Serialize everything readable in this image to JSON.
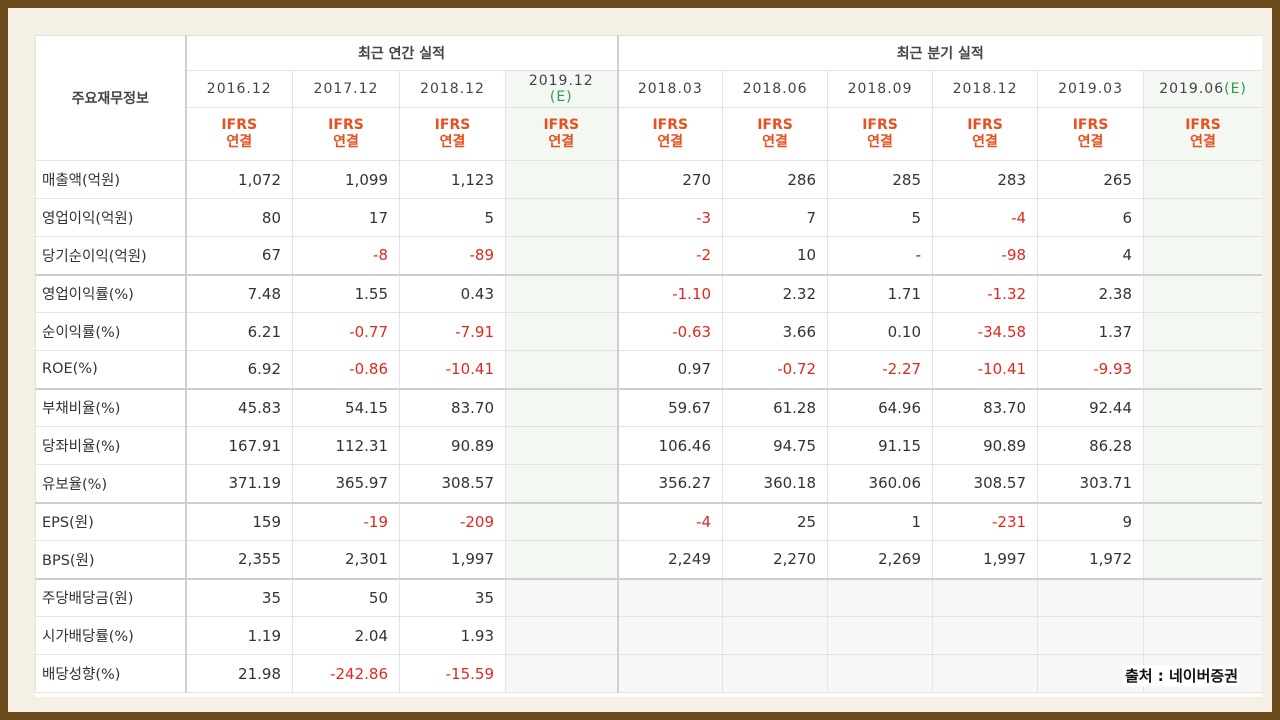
{
  "header": {
    "main_label": "주요재무정보",
    "annual_label": "최근 연간 실적",
    "quarterly_label": "최근 분기 실적",
    "annual_periods": [
      {
        "date": "2016.12",
        "est": ""
      },
      {
        "date": "2017.12",
        "est": ""
      },
      {
        "date": "2018.12",
        "est": ""
      },
      {
        "date": "2019.12",
        "est": "(E)"
      }
    ],
    "quarterly_periods": [
      {
        "date": "2018.03",
        "est": ""
      },
      {
        "date": "2018.06",
        "est": ""
      },
      {
        "date": "2018.09",
        "est": ""
      },
      {
        "date": "2018.12",
        "est": ""
      },
      {
        "date": "2019.03",
        "est": ""
      },
      {
        "date": "2019.06",
        "est": "(E)"
      }
    ],
    "ifrs_line1": "IFRS",
    "ifrs_line2": "연결"
  },
  "rows": [
    {
      "label": "매출액(억원)",
      "values": [
        "1,072",
        "1,099",
        "1,123",
        "",
        "270",
        "286",
        "285",
        "283",
        "265",
        ""
      ]
    },
    {
      "label": "영업이익(억원)",
      "values": [
        "80",
        "17",
        "5",
        "",
        "-3",
        "7",
        "5",
        "-4",
        "6",
        ""
      ]
    },
    {
      "label": "당기순이익(억원)",
      "values": [
        "67",
        "-8",
        "-89",
        "",
        "-2",
        "10",
        "-",
        "-98",
        "4",
        ""
      ]
    },
    {
      "label": "영업이익률(%)",
      "values": [
        "7.48",
        "1.55",
        "0.43",
        "",
        "-1.10",
        "2.32",
        "1.71",
        "-1.32",
        "2.38",
        ""
      ]
    },
    {
      "label": "순이익률(%)",
      "values": [
        "6.21",
        "-0.77",
        "-7.91",
        "",
        "-0.63",
        "3.66",
        "0.10",
        "-34.58",
        "1.37",
        ""
      ]
    },
    {
      "label": "ROE(%)",
      "values": [
        "6.92",
        "-0.86",
        "-10.41",
        "",
        "0.97",
        "-0.72",
        "-2.27",
        "-10.41",
        "-9.93",
        ""
      ]
    },
    {
      "label": "부채비율(%)",
      "values": [
        "45.83",
        "54.15",
        "83.70",
        "",
        "59.67",
        "61.28",
        "64.96",
        "83.70",
        "92.44",
        ""
      ]
    },
    {
      "label": "당좌비율(%)",
      "values": [
        "167.91",
        "112.31",
        "90.89",
        "",
        "106.46",
        "94.75",
        "91.15",
        "90.89",
        "86.28",
        ""
      ]
    },
    {
      "label": "유보율(%)",
      "values": [
        "371.19",
        "365.97",
        "308.57",
        "",
        "356.27",
        "360.18",
        "360.06",
        "308.57",
        "303.71",
        ""
      ]
    },
    {
      "label": "EPS(원)",
      "values": [
        "159",
        "-19",
        "-209",
        "",
        "-4",
        "25",
        "1",
        "-231",
        "9",
        ""
      ]
    },
    {
      "label": "BPS(원)",
      "values": [
        "2,355",
        "2,301",
        "1,997",
        "",
        "2,249",
        "2,270",
        "2,269",
        "1,997",
        "1,972",
        ""
      ]
    },
    {
      "label": "주당배당금(원)",
      "values": [
        "35",
        "50",
        "35",
        "",
        "",
        "",
        "",
        "",
        "",
        ""
      ]
    },
    {
      "label": "시가배당률(%)",
      "values": [
        "1.19",
        "2.04",
        "1.93",
        "",
        "",
        "",
        "",
        "",
        "",
        ""
      ]
    },
    {
      "label": "배당성향(%)",
      "values": [
        "21.98",
        "-242.86",
        "-15.59",
        "",
        "",
        "",
        "",
        "",
        "",
        ""
      ]
    }
  ],
  "source_label": "출처 : 네이버증권",
  "colors": {
    "negative": "#e0281e",
    "ifrs": "#e8501f",
    "estimate_bg": "#f3f8f2",
    "frame": "#6b4a1e"
  }
}
